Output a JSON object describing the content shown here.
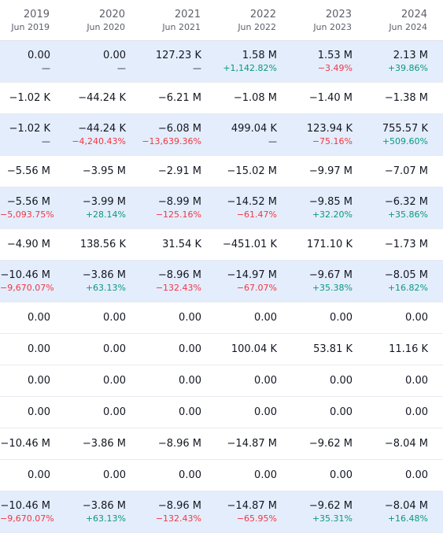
{
  "header": [
    {
      "year": "2019",
      "date": "Jun 2019"
    },
    {
      "year": "2020",
      "date": "Jun 2020"
    },
    {
      "year": "2021",
      "date": "Jun 2021"
    },
    {
      "year": "2022",
      "date": "Jun 2022"
    },
    {
      "year": "2023",
      "date": "Jun 2023"
    },
    {
      "year": "2024",
      "date": "Jun 2024"
    }
  ],
  "rows": [
    {
      "tall": true,
      "cells": [
        {
          "v": "0.00",
          "c": "—",
          "t": "neu"
        },
        {
          "v": "0.00",
          "c": "—",
          "t": "neu"
        },
        {
          "v": "127.23 K",
          "c": "—",
          "t": "neu"
        },
        {
          "v": "1.58 M",
          "c": "+1,142.82%",
          "t": "pos"
        },
        {
          "v": "1.53 M",
          "c": "−3.49%",
          "t": "neg"
        },
        {
          "v": "2.13 M",
          "c": "+39.86%",
          "t": "pos"
        }
      ]
    },
    {
      "tall": false,
      "cells": [
        {
          "v": "−1.02 K"
        },
        {
          "v": "−44.24 K"
        },
        {
          "v": "−6.21 M"
        },
        {
          "v": "−1.08 M"
        },
        {
          "v": "−1.40 M"
        },
        {
          "v": "−1.38 M"
        }
      ]
    },
    {
      "tall": true,
      "cells": [
        {
          "v": "−1.02 K",
          "c": "—",
          "t": "neu"
        },
        {
          "v": "−44.24 K",
          "c": "−4,240.43%",
          "t": "neg"
        },
        {
          "v": "−6.08 M",
          "c": "−13,639.36%",
          "t": "neg"
        },
        {
          "v": "499.04 K",
          "c": "—",
          "t": "neu"
        },
        {
          "v": "123.94 K",
          "c": "−75.16%",
          "t": "neg"
        },
        {
          "v": "755.57 K",
          "c": "+509.60%",
          "t": "pos"
        }
      ]
    },
    {
      "tall": false,
      "cells": [
        {
          "v": "−5.56 M"
        },
        {
          "v": "−3.95 M"
        },
        {
          "v": "−2.91 M"
        },
        {
          "v": "−15.02 M"
        },
        {
          "v": "−9.97 M"
        },
        {
          "v": "−7.07 M"
        }
      ]
    },
    {
      "tall": true,
      "cells": [
        {
          "v": "−5.56 M",
          "c": "−5,093.75%",
          "t": "neg"
        },
        {
          "v": "−3.99 M",
          "c": "+28.14%",
          "t": "pos"
        },
        {
          "v": "−8.99 M",
          "c": "−125.16%",
          "t": "neg"
        },
        {
          "v": "−14.52 M",
          "c": "−61.47%",
          "t": "neg"
        },
        {
          "v": "−9.85 M",
          "c": "+32.20%",
          "t": "pos"
        },
        {
          "v": "−6.32 M",
          "c": "+35.86%",
          "t": "pos"
        }
      ]
    },
    {
      "tall": false,
      "cells": [
        {
          "v": "−4.90 M"
        },
        {
          "v": "138.56 K"
        },
        {
          "v": "31.54 K"
        },
        {
          "v": "−451.01 K"
        },
        {
          "v": "171.10 K"
        },
        {
          "v": "−1.73 M"
        }
      ]
    },
    {
      "tall": true,
      "cells": [
        {
          "v": "−10.46 M",
          "c": "−9,670.07%",
          "t": "neg"
        },
        {
          "v": "−3.86 M",
          "c": "+63.13%",
          "t": "pos"
        },
        {
          "v": "−8.96 M",
          "c": "−132.43%",
          "t": "neg"
        },
        {
          "v": "−14.97 M",
          "c": "−67.07%",
          "t": "neg"
        },
        {
          "v": "−9.67 M",
          "c": "+35.38%",
          "t": "pos"
        },
        {
          "v": "−8.05 M",
          "c": "+16.82%",
          "t": "pos"
        }
      ]
    },
    {
      "tall": false,
      "cells": [
        {
          "v": "0.00"
        },
        {
          "v": "0.00"
        },
        {
          "v": "0.00"
        },
        {
          "v": "0.00"
        },
        {
          "v": "0.00"
        },
        {
          "v": "0.00"
        }
      ]
    },
    {
      "tall": false,
      "cells": [
        {
          "v": "0.00"
        },
        {
          "v": "0.00"
        },
        {
          "v": "0.00"
        },
        {
          "v": "100.04 K"
        },
        {
          "v": "53.81 K"
        },
        {
          "v": "11.16 K"
        }
      ]
    },
    {
      "tall": false,
      "cells": [
        {
          "v": "0.00"
        },
        {
          "v": "0.00"
        },
        {
          "v": "0.00"
        },
        {
          "v": "0.00"
        },
        {
          "v": "0.00"
        },
        {
          "v": "0.00"
        }
      ]
    },
    {
      "tall": false,
      "cells": [
        {
          "v": "0.00"
        },
        {
          "v": "0.00"
        },
        {
          "v": "0.00"
        },
        {
          "v": "0.00"
        },
        {
          "v": "0.00"
        },
        {
          "v": "0.00"
        }
      ]
    },
    {
      "tall": false,
      "cells": [
        {
          "v": "−10.46 M"
        },
        {
          "v": "−3.86 M"
        },
        {
          "v": "−8.96 M"
        },
        {
          "v": "−14.87 M"
        },
        {
          "v": "−9.62 M"
        },
        {
          "v": "−8.04 M"
        }
      ]
    },
    {
      "tall": false,
      "cells": [
        {
          "v": "0.00"
        },
        {
          "v": "0.00"
        },
        {
          "v": "0.00"
        },
        {
          "v": "0.00"
        },
        {
          "v": "0.00"
        },
        {
          "v": "0.00"
        }
      ]
    },
    {
      "tall": true,
      "cells": [
        {
          "v": "−10.46 M",
          "c": "−9,670.07%",
          "t": "neg"
        },
        {
          "v": "−3.86 M",
          "c": "+63.13%",
          "t": "pos"
        },
        {
          "v": "−8.96 M",
          "c": "−132.43%",
          "t": "neg"
        },
        {
          "v": "−14.87 M",
          "c": "−65.95%",
          "t": "neg"
        },
        {
          "v": "−9.62 M",
          "c": "+35.31%",
          "t": "pos"
        },
        {
          "v": "−8.04 M",
          "c": "+16.48%",
          "t": "pos"
        }
      ]
    }
  ]
}
